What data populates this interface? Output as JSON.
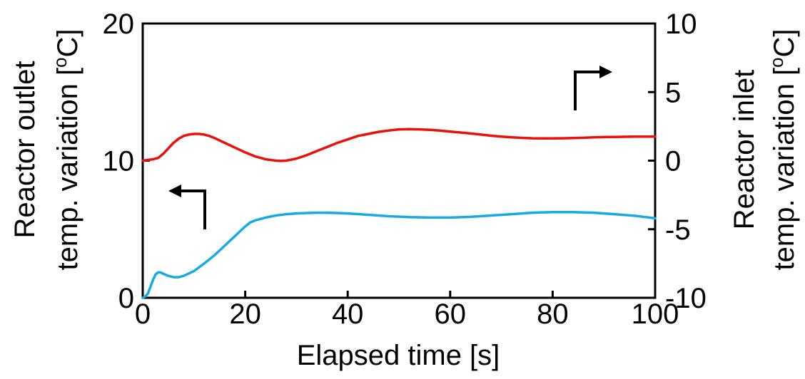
{
  "chart_data": {
    "type": "line",
    "xlabel": "Elapsed time [s]",
    "ylabel_left": [
      "Reactor outlet",
      "temp. variation [",
      "o",
      "C]"
    ],
    "ylabel_right": [
      "Reactor inlet",
      "temp. variation [",
      "o",
      "C]"
    ],
    "xlim": [
      0,
      100
    ],
    "ylim_left": [
      0,
      20
    ],
    "ylim_right": [
      -10,
      10
    ],
    "x_ticks": [
      "0",
      "20",
      "40",
      "60",
      "80",
      "100"
    ],
    "y_left_ticks": [
      "0",
      "10",
      "20"
    ],
    "y_right_ticks": [
      "-10",
      "-5",
      "0",
      "5",
      "10"
    ],
    "grid": false,
    "series": [
      {
        "axis": "right",
        "color": "#e8120c",
        "x": [
          0,
          1,
          2,
          3,
          4,
          5,
          6,
          7,
          8,
          9,
          10,
          11,
          12,
          13,
          14,
          16,
          18,
          20,
          22,
          24,
          26,
          27,
          28,
          30,
          32,
          34,
          36,
          38,
          40,
          42,
          44,
          46,
          48,
          50,
          52,
          54,
          56,
          58,
          60,
          62,
          64,
          66,
          68,
          70,
          72,
          74,
          76,
          78,
          80,
          82,
          84,
          86,
          88,
          90,
          92,
          94,
          96,
          98,
          100
        ],
        "values": [
          0.0,
          0.05,
          0.1,
          0.2,
          0.5,
          0.9,
          1.3,
          1.6,
          1.8,
          1.9,
          1.95,
          1.95,
          1.9,
          1.8,
          1.65,
          1.3,
          0.95,
          0.6,
          0.3,
          0.1,
          0.0,
          -0.02,
          0.0,
          0.15,
          0.4,
          0.7,
          1.0,
          1.3,
          1.55,
          1.8,
          1.95,
          2.1,
          2.2,
          2.28,
          2.3,
          2.28,
          2.25,
          2.2,
          2.12,
          2.05,
          1.98,
          1.9,
          1.82,
          1.75,
          1.7,
          1.66,
          1.63,
          1.62,
          1.62,
          1.63,
          1.65,
          1.67,
          1.7,
          1.72,
          1.73,
          1.74,
          1.75,
          1.75,
          1.75
        ]
      },
      {
        "axis": "left",
        "color": "#1aaae0",
        "x": [
          0,
          0.5,
          1,
          1.5,
          2,
          2.5,
          3,
          3.5,
          4,
          5,
          6,
          7,
          8,
          10,
          12,
          14,
          16,
          18,
          20,
          21,
          22,
          24,
          26,
          28,
          30,
          32,
          34,
          36,
          38,
          40,
          44,
          48,
          52,
          56,
          60,
          64,
          68,
          72,
          76,
          80,
          84,
          88,
          92,
          96,
          100
        ],
        "values": [
          0.0,
          0.1,
          0.3,
          0.8,
          1.3,
          1.7,
          1.85,
          1.85,
          1.75,
          1.6,
          1.5,
          1.5,
          1.6,
          1.95,
          2.5,
          3.1,
          3.8,
          4.5,
          5.2,
          5.5,
          5.65,
          5.85,
          6.0,
          6.1,
          6.15,
          6.18,
          6.2,
          6.2,
          6.18,
          6.15,
          6.05,
          5.95,
          5.88,
          5.85,
          5.85,
          5.9,
          6.0,
          6.1,
          6.2,
          6.25,
          6.25,
          6.2,
          6.1,
          5.98,
          5.8
        ]
      }
    ],
    "annotations": [
      {
        "type": "arrow",
        "direction": "left",
        "color": "#000000"
      },
      {
        "type": "arrow",
        "direction": "right",
        "color": "#000000"
      }
    ]
  }
}
